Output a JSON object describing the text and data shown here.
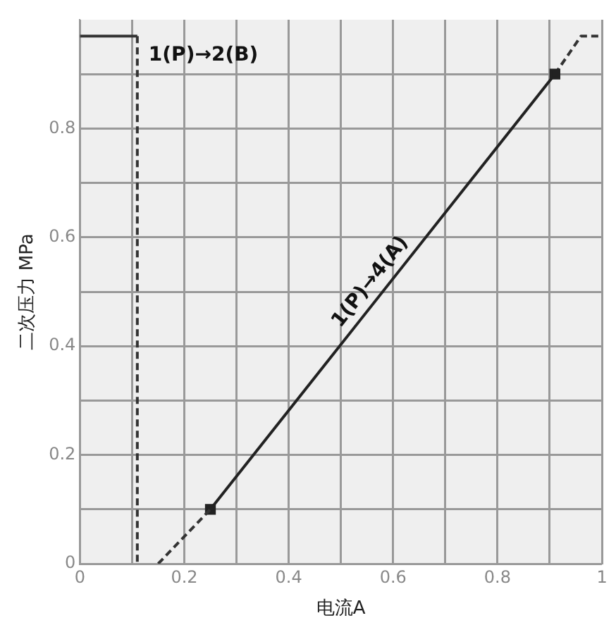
{
  "chart_data": {
    "type": "line",
    "xlabel": "电流A",
    "ylabel": "二次压力 MPa",
    "xlim": [
      0,
      1
    ],
    "ylim": [
      0,
      1
    ],
    "xticks": [
      0,
      {
        "value": 0.1,
        "label": null
      },
      0.2,
      {
        "value": 0.3,
        "label": null
      },
      0.4,
      {
        "value": 0.5,
        "label": null
      },
      0.6,
      {
        "value": 0.7,
        "label": null
      },
      0.8,
      {
        "value": 0.9,
        "label": null
      },
      1
    ],
    "yticks": [
      0,
      {
        "value": 0.1,
        "label": null
      },
      0.2,
      {
        "value": 0.3,
        "label": null
      },
      0.4,
      {
        "value": 0.5,
        "label": null
      },
      0.6,
      {
        "value": 0.7,
        "label": null
      },
      0.8,
      {
        "value": 0.9,
        "label": null
      }
    ],
    "grid": true,
    "legend": false,
    "series": [
      {
        "color": "#333333",
        "x": [
          0,
          0.11
        ],
        "values": [
          0.97,
          0.97
        ],
        "line_style": "solid",
        "marker": "none"
      },
      {
        "name": "1(P)→2(B)",
        "color": "#333333",
        "x": [
          0.11,
          0.11
        ],
        "values": [
          0.97,
          0
        ],
        "line_style": "dashed",
        "marker": "none"
      },
      {
        "color": "#333333",
        "x": [
          0.15,
          0.25
        ],
        "values": [
          0,
          0.1
        ],
        "line_style": "dashed",
        "marker": "none"
      },
      {
        "name": "1(P)→4(A)",
        "color": "#222222",
        "x": [
          0.25,
          0.91
        ],
        "values": [
          0.1,
          0.9
        ],
        "line_style": "solid",
        "marker": "square"
      },
      {
        "color": "#333333",
        "x": [
          0.91,
          0.96,
          1
        ],
        "values": [
          0.9,
          0.97,
          0.97
        ],
        "line_style": "dashed",
        "marker": "none"
      }
    ]
  }
}
